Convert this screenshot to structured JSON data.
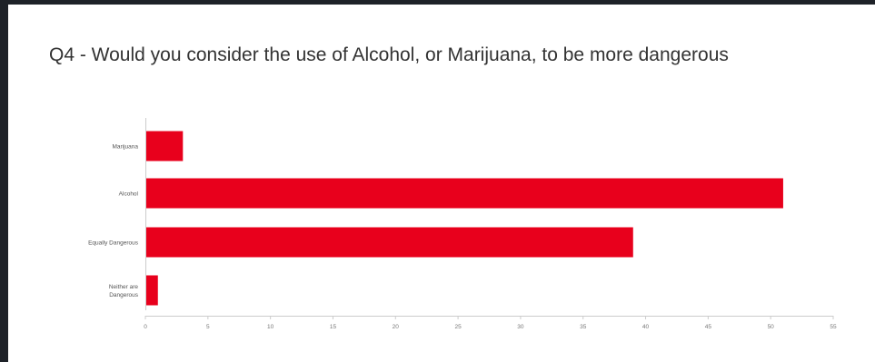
{
  "chart_data": {
    "type": "bar",
    "orientation": "horizontal",
    "title": "Q4 - Would you consider the use of Alcohol, or Marijuana, to be more dangerous",
    "categories": [
      "Marijuana",
      "Alcohol",
      "Equally Dangerous",
      "Neither are Dangerous"
    ],
    "values": [
      3,
      51,
      39,
      1
    ],
    "xlim": [
      0,
      55
    ],
    "xticks": [
      0,
      5,
      10,
      15,
      20,
      25,
      30,
      35,
      40,
      45,
      50,
      55
    ],
    "xlabel": "",
    "ylabel": "",
    "grid": false,
    "colors": {
      "bar": "#e8001c",
      "axis": "#cccccc"
    }
  }
}
